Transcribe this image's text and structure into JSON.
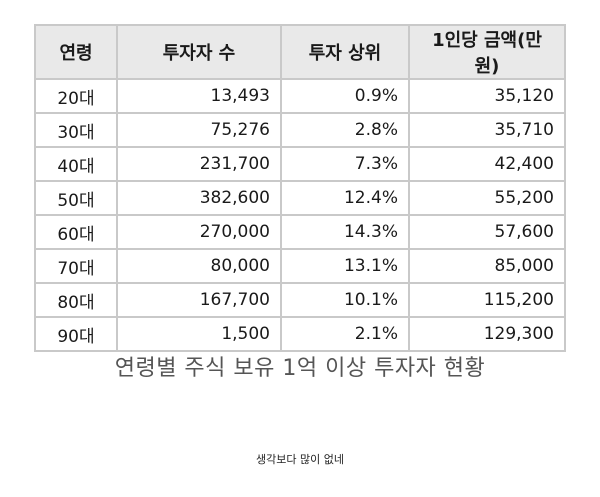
{
  "table": {
    "headers": [
      "연령",
      "투자자 수",
      "투자 상위",
      "1인당 금액(만원)"
    ],
    "rows": [
      [
        "20대",
        "13,493",
        "0.9%",
        "35,120"
      ],
      [
        "30대",
        "75,276",
        "2.8%",
        "35,710"
      ],
      [
        "40대",
        "231,700",
        "7.3%",
        "42,400"
      ],
      [
        "50대",
        "382,600",
        "12.4%",
        "55,200"
      ],
      [
        "60대",
        "270,000",
        "14.3%",
        "57,600"
      ],
      [
        "70대",
        "80,000",
        "13.1%",
        "85,000"
      ],
      [
        "80대",
        "167,700",
        "10.1%",
        "115,200"
      ],
      [
        "90대",
        "1,500",
        "2.1%",
        "129,300"
      ]
    ]
  },
  "caption": "연령별 주식 보유 1억 이상 투자자 현황",
  "comment": "생각보다 많이 없네"
}
